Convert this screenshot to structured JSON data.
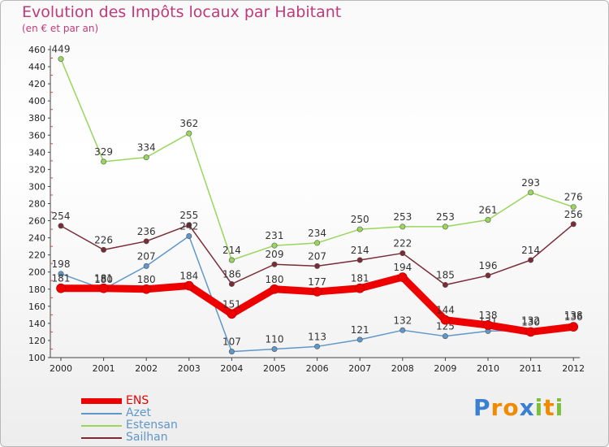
{
  "chart_data": {
    "type": "line",
    "title": "Evolution des Impôts locaux par Habitant",
    "subtitle": "(en € et par an)",
    "categories": [
      "2000",
      "2001",
      "2002",
      "2003",
      "2004",
      "2005",
      "2006",
      "2007",
      "2008",
      "2009",
      "2010",
      "2011",
      "2012"
    ],
    "ylim": [
      100,
      460
    ],
    "yticks": [
      100,
      120,
      140,
      160,
      180,
      200,
      220,
      240,
      260,
      280,
      300,
      320,
      340,
      360,
      380,
      400,
      420,
      440,
      460
    ],
    "grid": false,
    "legend_position": "bottom-left",
    "series": [
      {
        "name": "Estensan",
        "color": "#99d65c",
        "values": [
          449,
          329,
          334,
          362,
          214,
          231,
          234,
          250,
          253,
          253,
          261,
          293,
          276
        ],
        "labels": [
          "449",
          "329",
          "334",
          "362",
          "214",
          "231",
          "234",
          "250",
          "253",
          "253",
          "261",
          "293",
          "276"
        ]
      },
      {
        "name": "Sailhan",
        "color": "#7a2b37",
        "values": [
          254,
          226,
          236,
          255,
          186,
          209,
          207,
          214,
          222,
          185,
          196,
          214,
          256
        ],
        "labels": [
          "254",
          "226",
          "236",
          "255",
          "186",
          "209",
          "207",
          "214",
          "222",
          "185",
          "196",
          "214",
          "256"
        ]
      },
      {
        "name": "Azet",
        "color": "#5f97c9",
        "values": [
          198,
          180,
          207,
          242,
          107,
          110,
          113,
          121,
          132,
          125,
          131,
          132,
          138
        ],
        "labels": [
          "198",
          "180",
          "207",
          "242",
          "107",
          "110",
          "113",
          "121",
          "132",
          "125",
          "131",
          "132",
          "138"
        ]
      },
      {
        "name": "ENS",
        "color": "#ee0000",
        "values": [
          181,
          181,
          180,
          184,
          151,
          180,
          177,
          181,
          194,
          144,
          138,
          130,
          136
        ],
        "labels": [
          "181",
          "181",
          "180",
          "184",
          "151",
          "180",
          "177",
          "181",
          "194",
          "144",
          "138",
          "130",
          "136"
        ]
      }
    ],
    "legend": [
      "ENS",
      "Azet",
      "Estensan",
      "Sailhan"
    ]
  },
  "logo": {
    "letters": [
      "P",
      "r",
      "o",
      "x",
      "i",
      "t",
      "i"
    ],
    "colors": [
      "#3a7fd0",
      "#f08a00",
      "#f08a00",
      "#3a7fd0",
      "#7bbf3a",
      "#f08a00",
      "#7bbf3a"
    ]
  }
}
